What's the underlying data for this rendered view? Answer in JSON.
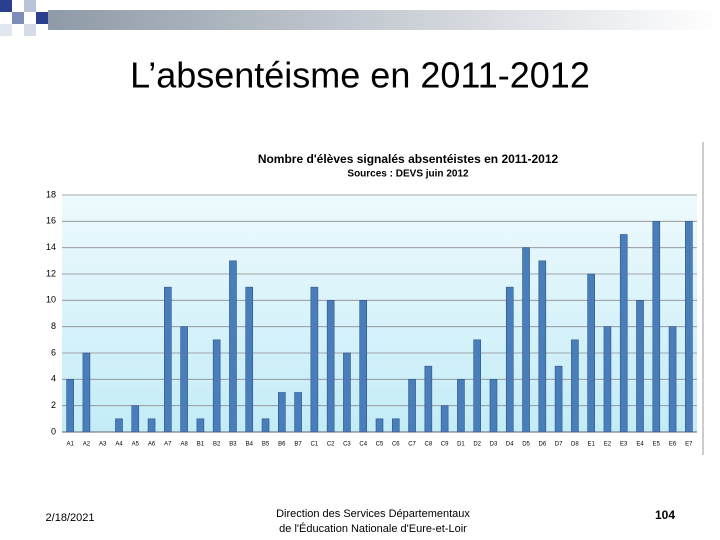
{
  "slide": {
    "title": "L’absentéisme en 2011-2012",
    "date": "2/18/2021",
    "footer": [
      "Direction des Services Départementaux",
      "de l'Éducation Nationale d'Eure-et-Loir"
    ],
    "page_number": "104"
  },
  "chart_data": {
    "type": "bar",
    "title": "Nombre d'élèves signalés absentéistes en 2011-2012",
    "subtitle": "Sources : DEVS juin 2012",
    "categories": [
      "A1",
      "A2",
      "A3",
      "A4",
      "A5",
      "A6",
      "A7",
      "A8",
      "B1",
      "B2",
      "B3",
      "B4",
      "B5",
      "B6",
      "B7",
      "C1",
      "C2",
      "C3",
      "C4",
      "C5",
      "C6",
      "C7",
      "C8",
      "C9",
      "D1",
      "D2",
      "D3",
      "D4",
      "D5",
      "D6",
      "D7",
      "D8",
      "E1",
      "E2",
      "E3",
      "E4",
      "E5",
      "E6",
      "E7"
    ],
    "values": [
      4,
      6,
      0,
      1,
      2,
      1,
      11,
      8,
      1,
      7,
      13,
      11,
      1,
      3,
      3,
      11,
      10,
      6,
      10,
      1,
      1,
      4,
      5,
      2,
      4,
      7,
      4,
      11,
      14,
      13,
      5,
      7,
      12,
      8,
      15,
      10,
      16,
      8,
      16
    ],
    "color": "#4a7ebb",
    "ylim": [
      0,
      18
    ],
    "yticks": [
      0,
      2,
      4,
      6,
      8,
      10,
      12,
      14,
      16,
      18
    ],
    "grid": true
  }
}
